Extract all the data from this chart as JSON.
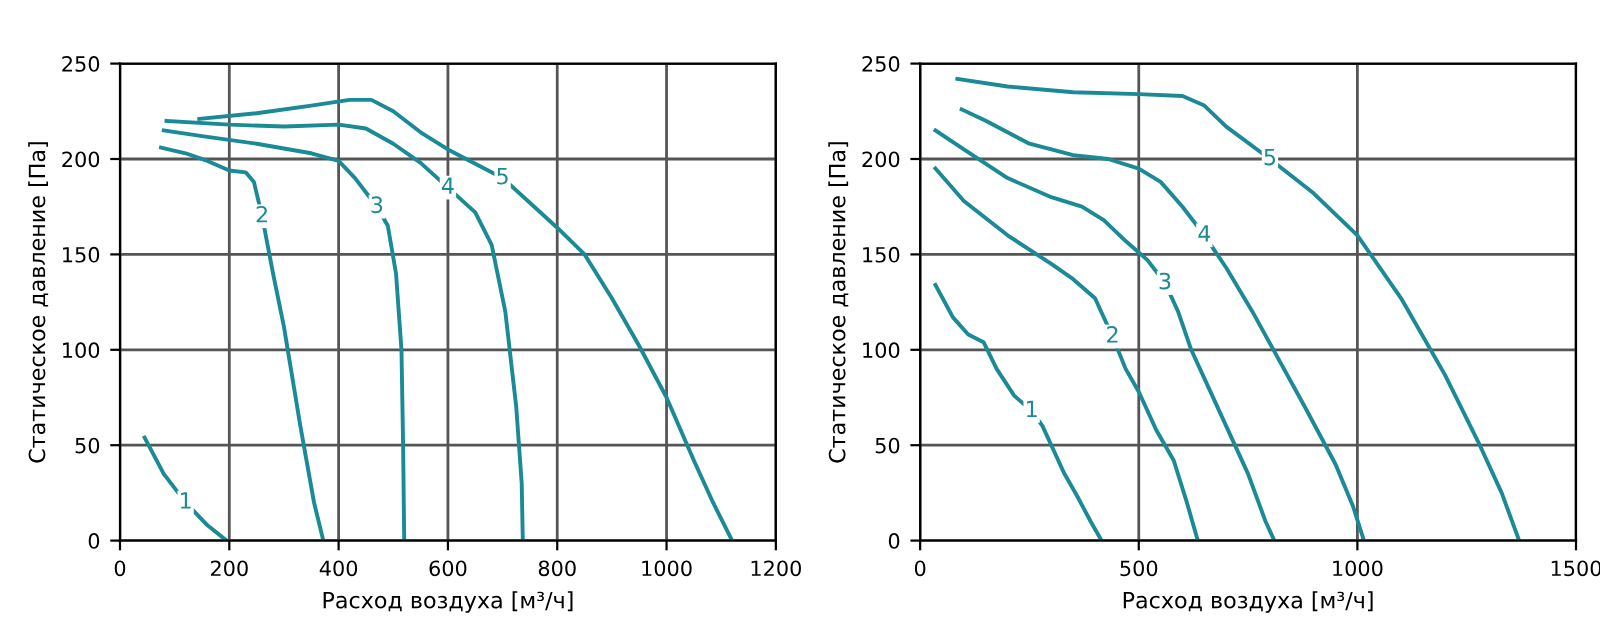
{
  "chart_data": [
    {
      "type": "line",
      "xlabel": "Расход воздуха [м³/ч]",
      "ylabel": "Статическое давление [Па]",
      "xlim": [
        0,
        1200
      ],
      "ylim": [
        0,
        250
      ],
      "xticks": [
        0,
        200,
        400,
        600,
        800,
        1000,
        1200
      ],
      "yticks": [
        0,
        50,
        100,
        150,
        200,
        250
      ],
      "grid": true,
      "legend": false,
      "series": [
        {
          "name": "1",
          "color": "#1a8a96",
          "x": [
            45,
            80,
            120,
            160,
            195
          ],
          "values": [
            54,
            35,
            20,
            8,
            0
          ]
        },
        {
          "name": "2",
          "color": "#1a8a96",
          "x": [
            75,
            120,
            160,
            200,
            230,
            245,
            260,
            280,
            300,
            330,
            355,
            372
          ],
          "values": [
            206,
            203,
            199,
            194,
            193,
            188,
            170,
            140,
            112,
            60,
            20,
            0
          ]
        },
        {
          "name": "3",
          "color": "#1a8a96",
          "x": [
            80,
            150,
            250,
            350,
            400,
            430,
            470,
            490,
            505,
            515,
            518,
            520
          ],
          "values": [
            215,
            212,
            208,
            203,
            199,
            190,
            175,
            165,
            140,
            100,
            50,
            0
          ]
        },
        {
          "name": "4",
          "color": "#1a8a96",
          "x": [
            85,
            200,
            300,
            400,
            450,
            500,
            550,
            600,
            650,
            680,
            705,
            725,
            735,
            737
          ],
          "values": [
            220,
            218,
            217,
            218,
            216,
            208,
            198,
            185,
            172,
            155,
            120,
            70,
            30,
            0
          ]
        },
        {
          "name": "5",
          "color": "#1a8a96",
          "x": [
            145,
            250,
            350,
            420,
            460,
            500,
            550,
            600,
            700,
            800,
            850,
            900,
            950,
            1000,
            1050,
            1085,
            1120
          ],
          "values": [
            221,
            224,
            228,
            231,
            231,
            225,
            214,
            205,
            190,
            164,
            150,
            127,
            102,
            75,
            42,
            20,
            0
          ]
        }
      ]
    },
    {
      "type": "line",
      "xlabel": "Расход воздуха [м³/ч]",
      "ylabel": "Статическое давление [Па]",
      "xlim": [
        0,
        1500
      ],
      "ylim": [
        0,
        250
      ],
      "xticks": [
        0,
        500,
        1000,
        1500
      ],
      "yticks": [
        0,
        50,
        100,
        150,
        200,
        250
      ],
      "grid": true,
      "legend": false,
      "series": [
        {
          "name": "1",
          "color": "#1a8a96",
          "x": [
            35,
            75,
            110,
            145,
            175,
            215,
            255,
            280,
            300,
            330,
            360,
            390,
            415
          ],
          "values": [
            134,
            117,
            108,
            104,
            90,
            76,
            68,
            60,
            50,
            35,
            23,
            10,
            0
          ]
        },
        {
          "name": "2",
          "color": "#1a8a96",
          "x": [
            35,
            100,
            200,
            300,
            350,
            400,
            440,
            470,
            500,
            540,
            580,
            610,
            635
          ],
          "values": [
            195,
            178,
            160,
            145,
            137,
            127,
            107,
            90,
            78,
            58,
            42,
            20,
            0
          ]
        },
        {
          "name": "3",
          "color": "#1a8a96",
          "x": [
            35,
            100,
            200,
            300,
            370,
            420,
            470,
            520,
            560,
            590,
            620,
            650,
            700,
            750,
            790,
            810
          ],
          "values": [
            215,
            205,
            190,
            180,
            175,
            168,
            157,
            147,
            135,
            120,
            100,
            85,
            60,
            35,
            10,
            0
          ]
        },
        {
          "name": "4",
          "color": "#1a8a96",
          "x": [
            95,
            150,
            250,
            350,
            430,
            500,
            550,
            600,
            650,
            700,
            760,
            820,
            880,
            950,
            990,
            1015
          ],
          "values": [
            226,
            220,
            208,
            202,
            200,
            195,
            188,
            175,
            160,
            143,
            120,
            95,
            70,
            40,
            18,
            0
          ]
        },
        {
          "name": "5",
          "color": "#1a8a96",
          "x": [
            85,
            200,
            350,
            500,
            600,
            650,
            700,
            800,
            900,
            1000,
            1100,
            1200,
            1280,
            1330,
            1370
          ],
          "values": [
            242,
            238,
            235,
            234,
            233,
            228,
            217,
            200,
            182,
            160,
            127,
            87,
            50,
            25,
            0
          ]
        }
      ]
    }
  ]
}
